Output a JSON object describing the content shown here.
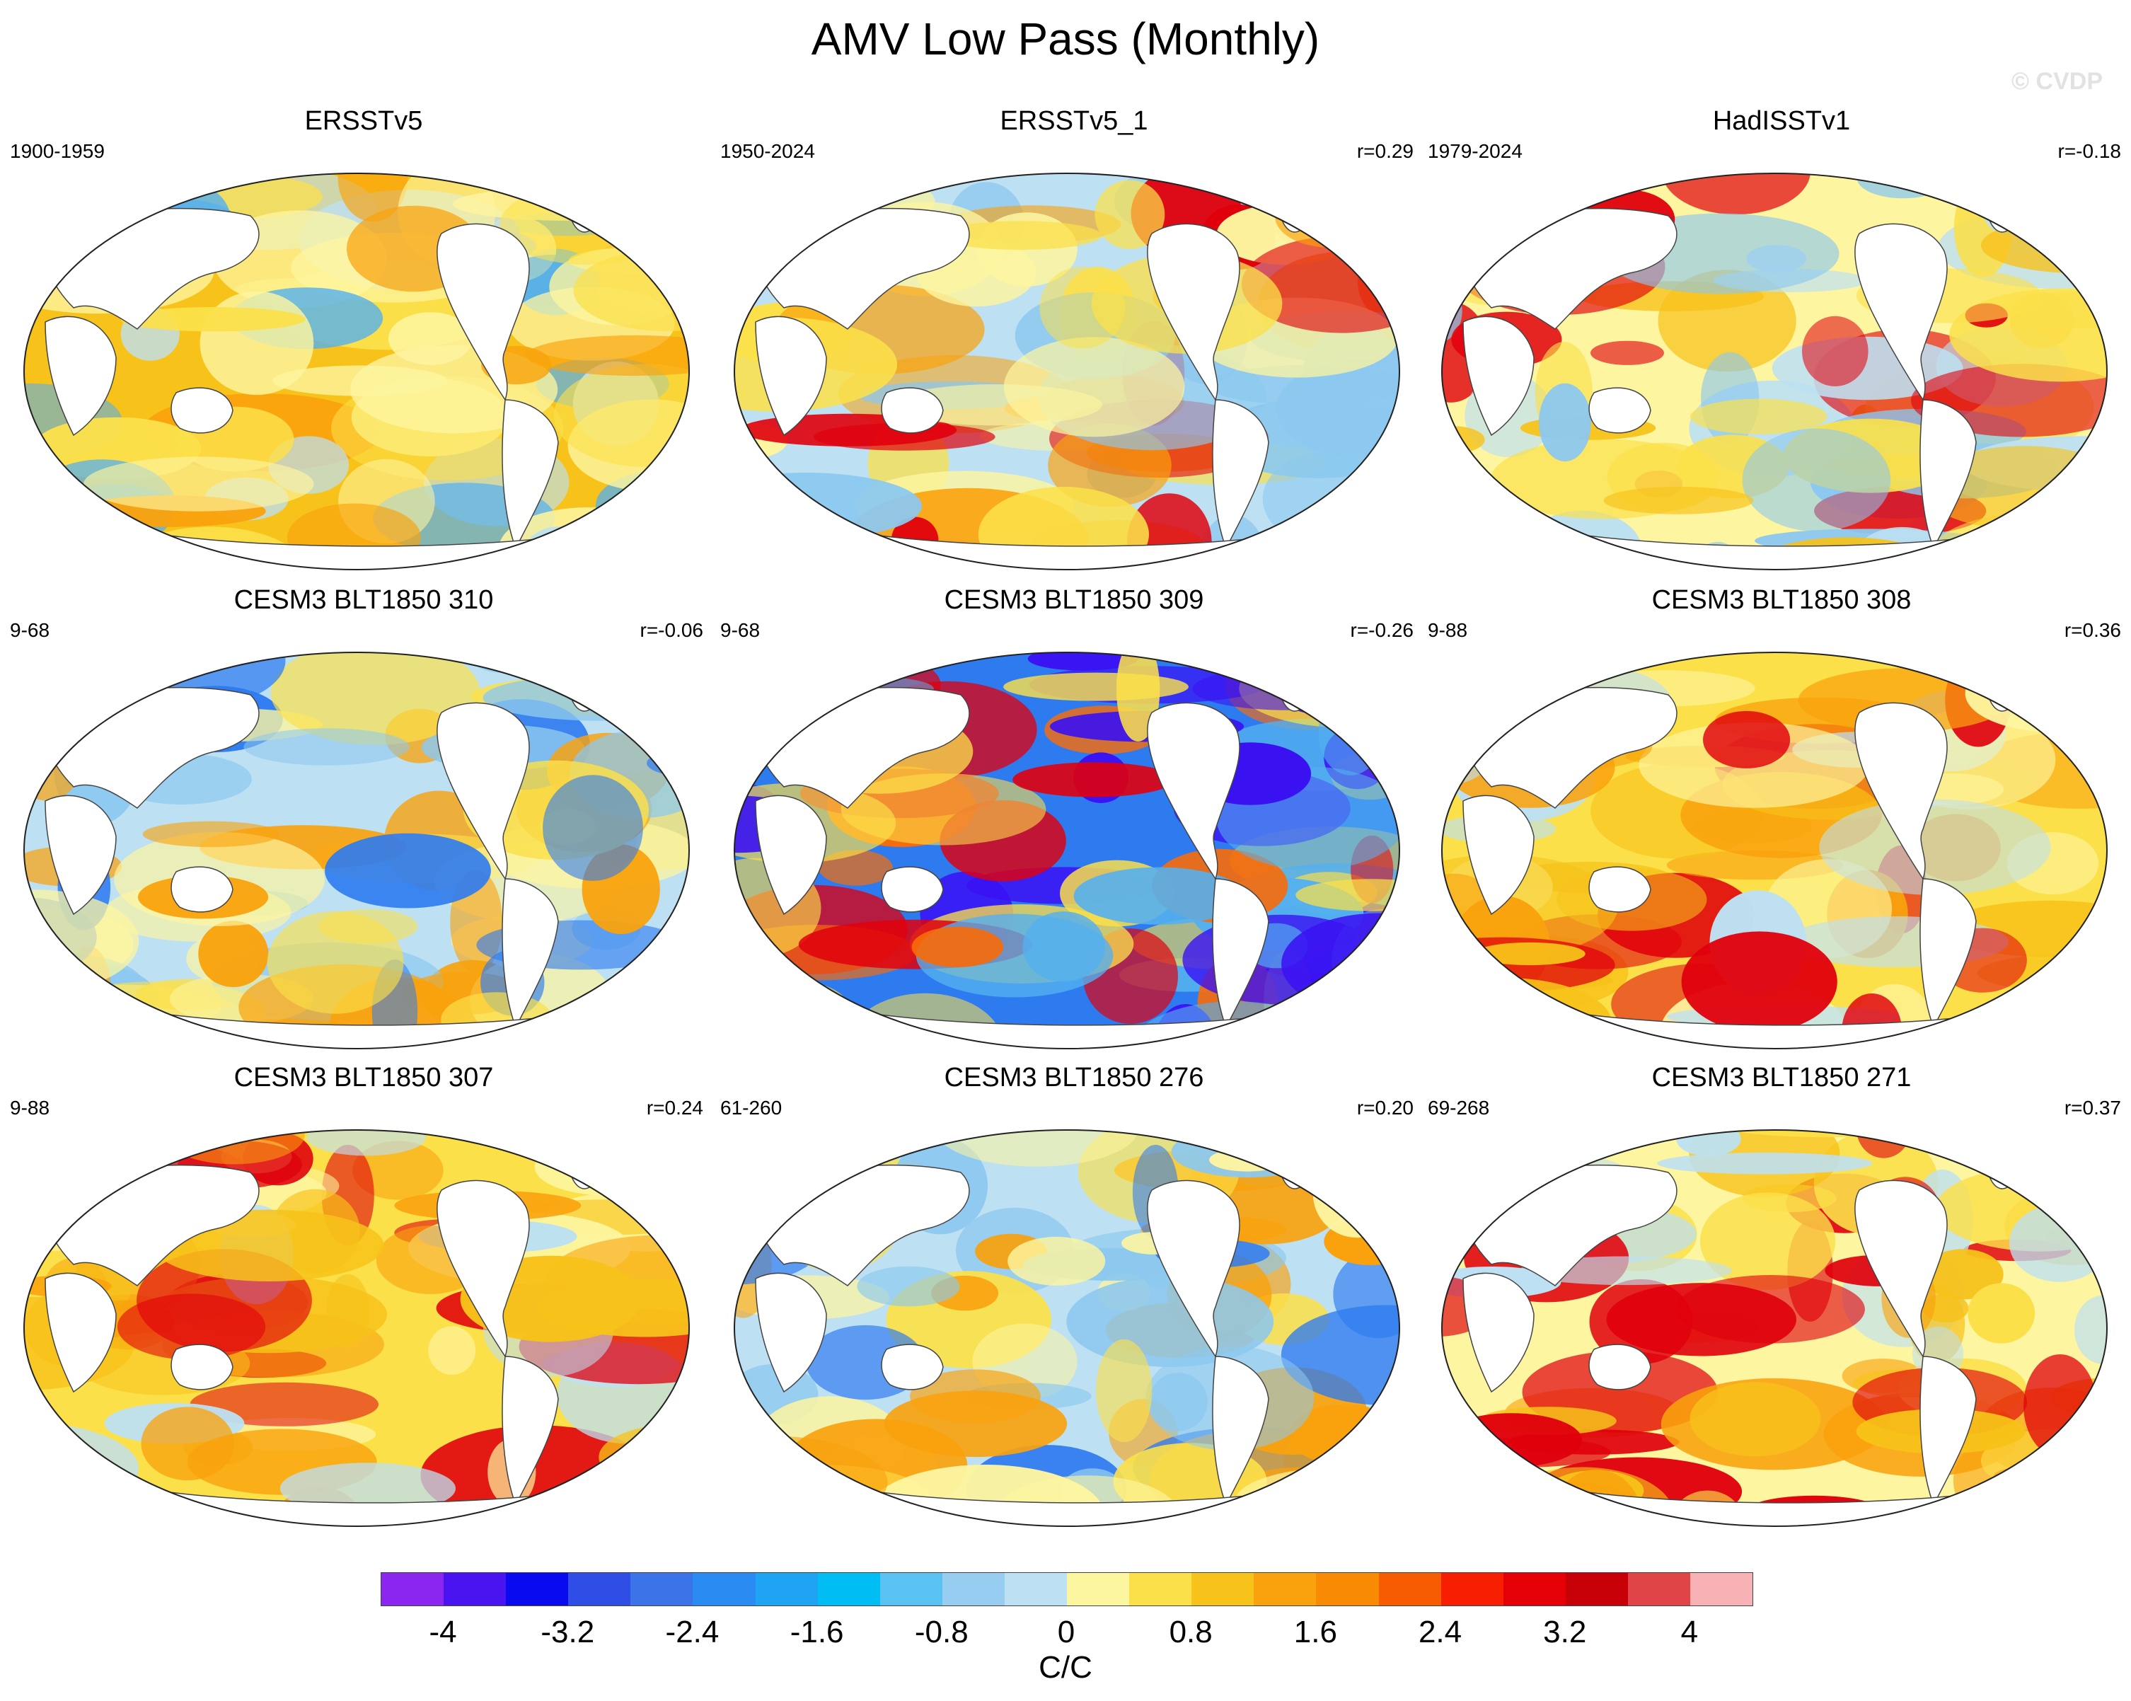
{
  "title": "AMV Low Pass (Monthly)",
  "watermark": "© CVDP",
  "panels": [
    {
      "title": "ERSSTv5",
      "years": "1900-1959",
      "corr": "",
      "palette": [
        "#f7c21a",
        "#fbe04a",
        "#fdf5a0",
        "#f9a20d",
        "#bde0f2",
        "#54b0ef"
      ]
    },
    {
      "title": "ERSSTv5_1",
      "years": "1950-2024",
      "corr": "r=0.29",
      "palette": [
        "#bde0f2",
        "#8cc8ef",
        "#fdf5a0",
        "#fbe04a",
        "#f9a20d",
        "#e0000c"
      ]
    },
    {
      "title": "HadISSTv1",
      "years": "1979-2024",
      "corr": "r=-0.18",
      "palette": [
        "#fdf5a0",
        "#fbe04a",
        "#bde0f2",
        "#8cc8ef",
        "#f7c21a",
        "#e0000c"
      ]
    },
    {
      "title": "CESM3 BLT1850 310",
      "years": "9-68",
      "corr": "r=-0.06",
      "palette": [
        "#bde0f2",
        "#8cc8ef",
        "#fdf5a0",
        "#fbe04a",
        "#2e7bf0",
        "#f9a20d"
      ]
    },
    {
      "title": "CESM3 BLT1850 309",
      "years": "9-68",
      "corr": "r=-0.26",
      "palette": [
        "#2e7bf0",
        "#54b0ef",
        "#fbe04a",
        "#f76c0a",
        "#e0000c",
        "#3a12f2"
      ]
    },
    {
      "title": "CESM3 BLT1850 308",
      "years": "9-88",
      "corr": "r=0.36",
      "palette": [
        "#fbe04a",
        "#fdf5a0",
        "#f7c21a",
        "#bde0f2",
        "#f9a20d",
        "#e0000c"
      ]
    },
    {
      "title": "CESM3 BLT1850 307",
      "years": "9-88",
      "corr": "r=0.24",
      "palette": [
        "#fbe04a",
        "#f7c21a",
        "#fdf5a0",
        "#f9a20d",
        "#bde0f2",
        "#e0000c"
      ]
    },
    {
      "title": "CESM3 BLT1850 276",
      "years": "61-260",
      "corr": "r=0.20",
      "palette": [
        "#bde0f2",
        "#fdf5a0",
        "#fbe04a",
        "#8cc8ef",
        "#f9a20d",
        "#2e7bf0"
      ]
    },
    {
      "title": "CESM3 BLT1850 271",
      "years": "69-268",
      "corr": "r=0.37",
      "palette": [
        "#fdf5a0",
        "#fbe04a",
        "#f7c21a",
        "#bde0f2",
        "#f9a20d",
        "#e0000c"
      ]
    }
  ],
  "colorbar": {
    "colors": [
      "#8a26f0",
      "#4a14f0",
      "#0a0af0",
      "#2e4ee6",
      "#3a74e8",
      "#2a8cf2",
      "#1fa4f4",
      "#00bef4",
      "#5ac2f2",
      "#96cdf0",
      "#bde0f2",
      "#fdf6a0",
      "#fbe04a",
      "#f7c21a",
      "#f9a20d",
      "#f98a04",
      "#f85c02",
      "#f71e02",
      "#e50008",
      "#c60006",
      "#e04446",
      "#f8b2b6"
    ],
    "labels": [
      "-4",
      "-3.2",
      "-2.4",
      "-1.6",
      "-0.8",
      "0",
      "0.8",
      "1.6",
      "2.4",
      "3.2",
      "4"
    ],
    "units": "C/C"
  }
}
